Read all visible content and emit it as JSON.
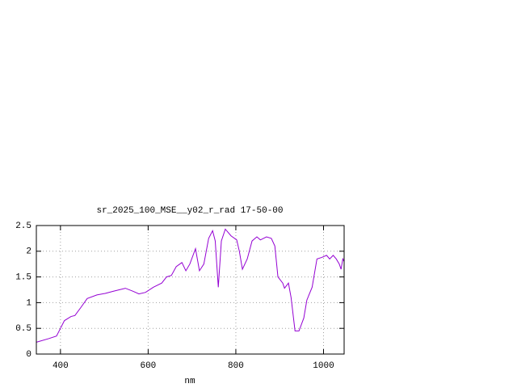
{
  "chart_data": {
    "type": "line",
    "title": "sr_2025_100_MSE__y02_r_rad 17-50-00",
    "x_label": "nm",
    "x": [
      345,
      373,
      391,
      400,
      409,
      424,
      433,
      446,
      461,
      483,
      502,
      520,
      548,
      566,
      579,
      594,
      612,
      631,
      642,
      653,
      664,
      677,
      686,
      695,
      708,
      717,
      727,
      738,
      747,
      753,
      760,
      767,
      776,
      789,
      802,
      808,
      815,
      826,
      837,
      848,
      856,
      870,
      881,
      889,
      896,
      907,
      911,
      920,
      926,
      935,
      944,
      955,
      962,
      974,
      985,
      996,
      1007,
      1014,
      1022,
      1029,
      1036,
      1040,
      1044,
      1047
    ],
    "series": [
      {
        "color": "#9400d3",
        "values": [
          0.23,
          0.3,
          0.35,
          0.5,
          0.65,
          0.73,
          0.75,
          0.9,
          1.08,
          1.15,
          1.18,
          1.22,
          1.28,
          1.22,
          1.17,
          1.2,
          1.3,
          1.38,
          1.5,
          1.53,
          1.7,
          1.78,
          1.62,
          1.75,
          2.05,
          1.62,
          1.75,
          2.25,
          2.4,
          2.2,
          1.3,
          2.2,
          2.43,
          2.3,
          2.22,
          2.0,
          1.65,
          1.85,
          2.2,
          2.28,
          2.22,
          2.28,
          2.25,
          2.1,
          1.5,
          1.38,
          1.28,
          1.38,
          1.1,
          0.45,
          0.45,
          0.7,
          1.05,
          1.3,
          1.85,
          1.88,
          1.92,
          1.85,
          1.92,
          1.85,
          1.75,
          1.65,
          1.85,
          1.8
        ]
      }
    ],
    "xlim": [
      345,
      1047
    ],
    "xticks": [
      400,
      600,
      800,
      1000
    ],
    "ylim": [
      0,
      2.5
    ],
    "yticks": [
      0,
      0.5,
      1,
      1.5,
      2,
      2.5
    ],
    "grid": true
  }
}
